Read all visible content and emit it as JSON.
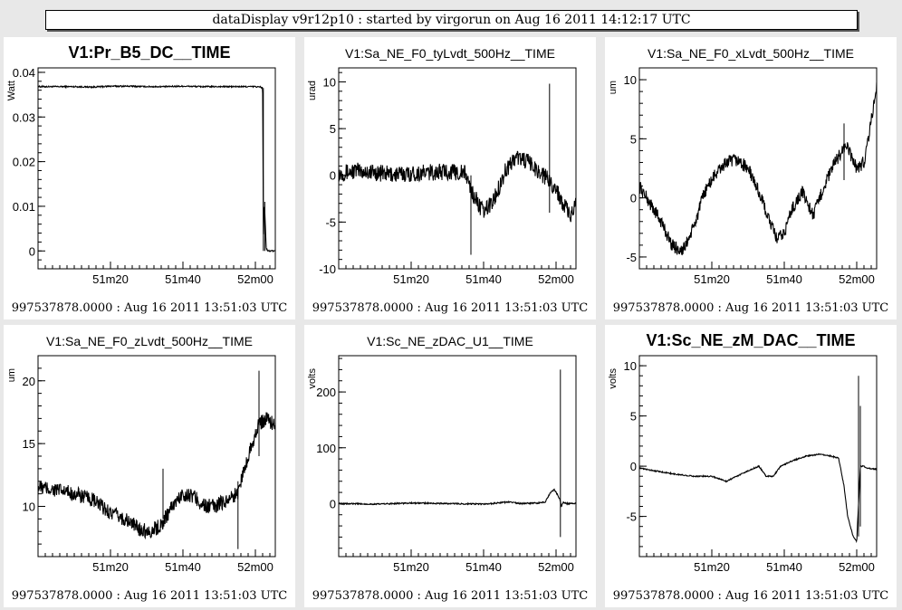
{
  "header": {
    "title": "dataDisplay v9r12p10 : started by virgorun on Aug 16 2011 14:12:17 UTC"
  },
  "colors": {
    "background": "#e8e8e8",
    "panel": "#ffffff",
    "ink": "#000000"
  },
  "chart_data": [
    {
      "type": "line",
      "title": "V1:Pr_B5_DC__TIME",
      "ylabel": "Watt",
      "xlabel": "",
      "ylim": [
        -0.004,
        0.041
      ],
      "xlim": [
        0,
        65.5
      ],
      "yticks": [
        0,
        0.01,
        0.02,
        0.03,
        0.04
      ],
      "yticklabels": [
        "0",
        "0.01",
        "0.02",
        "0.03",
        "0.04"
      ],
      "xticks": [
        20,
        40,
        60
      ],
      "xticklabels": [
        "51m20",
        "51m40",
        "52m00"
      ],
      "footer": "997537878.0000 : Aug 16 2011 13:51:03 UTC",
      "series": [
        {
          "x": [
            0,
            5,
            10,
            15,
            20,
            25,
            30,
            35,
            40,
            45,
            50,
            55,
            60,
            61.5,
            62,
            62.2,
            62.5,
            63,
            63.5,
            65.5
          ],
          "y": [
            0.0368,
            0.0368,
            0.0368,
            0.0367,
            0.0369,
            0.0369,
            0.0368,
            0.0368,
            0.0369,
            0.0368,
            0.0368,
            0.0368,
            0.0368,
            0.0367,
            0.0365,
            0.003,
            0.011,
            0.0005,
            0,
            0
          ]
        }
      ],
      "noise": 0.00015,
      "spikes": [
        {
          "x": 62.2,
          "y1": 0,
          "y2": 0.0365
        },
        {
          "x": 62.6,
          "y1": 0,
          "y2": 0.011
        }
      ]
    },
    {
      "type": "line",
      "title": "V1:Sa_NE_F0_tyLvdt_500Hz__TIME",
      "ylabel": "urad",
      "xlabel": "",
      "ylim": [
        -10,
        11.5
      ],
      "xlim": [
        0,
        65.5
      ],
      "yticks": [
        -10,
        -5,
        0,
        5,
        10
      ],
      "yticklabels": [
        "-10",
        "-5",
        "0",
        "5",
        "10"
      ],
      "xticks": [
        20,
        40,
        60
      ],
      "xticklabels": [
        "51m20",
        "51m40",
        "52m00"
      ],
      "footer": "997537878.0000 : Aug 16 2011 13:51:03 UTC",
      "series": [
        {
          "x": [
            0,
            5,
            10,
            15,
            20,
            25,
            30,
            35,
            37,
            40,
            43,
            46,
            49,
            52,
            55,
            58,
            60,
            62,
            64,
            65.5
          ],
          "y": [
            0.2,
            0.5,
            0.3,
            0.1,
            0.2,
            0.3,
            0.4,
            0.2,
            -2,
            -4,
            -2.5,
            0.5,
            2,
            1.5,
            0.5,
            -0.5,
            -1.5,
            -3,
            -4.5,
            -3
          ]
        }
      ],
      "noise": 0.9,
      "spikes": [
        {
          "x": 36.5,
          "y1": -8.5,
          "y2": 0
        },
        {
          "x": 58.2,
          "y1": -4,
          "y2": 9.8
        }
      ]
    },
    {
      "type": "line",
      "title": "V1:Sa_NE_F0_xLvdt_500Hz__TIME",
      "ylabel": "um",
      "xlabel": "",
      "ylim": [
        -6,
        11
      ],
      "xlim": [
        0,
        65.5
      ],
      "yticks": [
        -5,
        0,
        5,
        10
      ],
      "yticklabels": [
        "-5",
        "0",
        "5",
        "10"
      ],
      "xticks": [
        20,
        40,
        60
      ],
      "xticklabels": [
        "51m20",
        "51m40",
        "52m00"
      ],
      "footer": "997537878.0000 : Aug 16 2011 13:51:03 UTC",
      "series": [
        {
          "x": [
            0,
            3,
            6,
            9,
            12,
            15,
            18,
            21,
            24,
            27,
            30,
            33,
            36,
            38,
            40,
            42,
            45,
            48,
            51,
            54,
            57,
            60,
            62,
            64,
            65.5
          ],
          "y": [
            1,
            -0.5,
            -2,
            -4,
            -4.5,
            -2.5,
            0.5,
            2,
            3,
            3.2,
            2.5,
            0.5,
            -2,
            -3.5,
            -3,
            -1,
            0.5,
            -1.5,
            1,
            3,
            4.5,
            2.5,
            3,
            6.5,
            9.5
          ]
        }
      ],
      "noise": 0.55,
      "spikes": [
        {
          "x": 56.5,
          "y1": 1.5,
          "y2": 6.3
        }
      ]
    },
    {
      "type": "line",
      "title": "V1:Sa_NE_F0_zLvdt_500Hz__TIME",
      "ylabel": "um",
      "xlabel": "",
      "ylim": [
        6,
        22
      ],
      "xlim": [
        0,
        65.5
      ],
      "yticks": [
        10,
        15,
        20
      ],
      "yticklabels": [
        "10",
        "15",
        "20"
      ],
      "xticks": [
        20,
        40,
        60
      ],
      "xticklabels": [
        "51m20",
        "51m40",
        "52m00"
      ],
      "footer": "997537878.0000 : Aug 16 2011 13:51:03 UTC",
      "series": [
        {
          "x": [
            0,
            5,
            10,
            15,
            20,
            25,
            28,
            31,
            34,
            37,
            40,
            43,
            46,
            49,
            52,
            55,
            57,
            59,
            61,
            63,
            65.5
          ],
          "y": [
            11.5,
            11.3,
            11,
            10.5,
            9.5,
            8.8,
            8.2,
            8,
            8.5,
            10,
            11,
            10.8,
            10,
            10,
            10.5,
            11,
            13,
            15,
            16.5,
            17,
            16.5
          ]
        }
      ],
      "noise": 0.6,
      "spikes": [
        {
          "x": 34.5,
          "y1": 9,
          "y2": 13
        },
        {
          "x": 55.2,
          "y1": 6.6,
          "y2": 12
        },
        {
          "x": 61,
          "y1": 14,
          "y2": 20.8
        }
      ]
    },
    {
      "type": "line",
      "title": "V1:Sc_NE_zDAC_U1__TIME",
      "ylabel": "volts",
      "xlabel": "",
      "ylim": [
        -95,
        265
      ],
      "xlim": [
        0,
        65.5
      ],
      "yticks": [
        0,
        100,
        200
      ],
      "yticklabels": [
        "0",
        "100",
        "200"
      ],
      "xticks": [
        20,
        40,
        60
      ],
      "xticklabels": [
        "51m20",
        "51m40",
        "52m00"
      ],
      "footer": "997537878.0000 : Aug 16 2011 13:51:03 UTC",
      "series": [
        {
          "x": [
            0,
            10,
            20,
            30,
            40,
            44,
            47,
            50,
            55,
            57,
            58.5,
            59.5,
            60.5,
            61,
            61.5,
            62,
            63,
            65.5
          ],
          "y": [
            0,
            -1,
            1,
            0,
            -1,
            1,
            3,
            0,
            1,
            3,
            20,
            25,
            15,
            8,
            -5,
            2,
            0,
            0
          ]
        }
      ],
      "noise": 1.2,
      "spikes": [
        {
          "x": 61.2,
          "y1": -60,
          "y2": 240
        }
      ]
    },
    {
      "type": "line",
      "title": "V1:Sc_NE_zM_DAC__TIME",
      "ylabel": "volts",
      "xlabel": "",
      "ylim": [
        -9,
        11
      ],
      "xlim": [
        0,
        65.5
      ],
      "yticks": [
        -5,
        0,
        5,
        10
      ],
      "yticklabels": [
        "-5",
        "0",
        "5",
        "10"
      ],
      "xticks": [
        20,
        40,
        60
      ],
      "xticklabels": [
        "51m20",
        "51m40",
        "52m00"
      ],
      "footer": "997537878.0000 : Aug 16 2011 13:51:03 UTC",
      "series": [
        {
          "x": [
            0,
            5,
            10,
            15,
            20,
            24,
            28,
            31,
            33,
            35,
            37,
            39,
            42,
            46,
            50,
            53,
            55,
            56.5,
            57.5,
            59,
            60,
            61,
            62,
            63,
            65.5
          ],
          "y": [
            -0.2,
            -0.5,
            -0.8,
            -1,
            -1,
            -1.5,
            -0.8,
            -0.3,
            0,
            -1,
            -1,
            0,
            0.5,
            1,
            1.2,
            1,
            0.8,
            -2,
            -5,
            -7,
            -7.5,
            0,
            0,
            -0.2,
            -0.3
          ]
        }
      ],
      "noise": 0.06,
      "spikes": [
        {
          "x": 60.5,
          "y1": -7,
          "y2": 9
        },
        {
          "x": 61,
          "y1": -6,
          "y2": 6
        }
      ]
    }
  ]
}
